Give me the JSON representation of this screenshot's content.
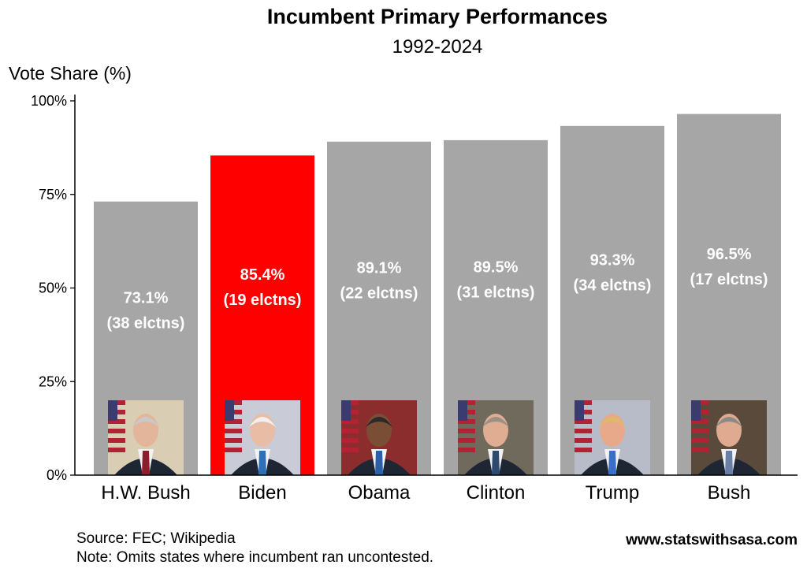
{
  "chart_data": {
    "type": "bar",
    "title": "Incumbent Primary Performances",
    "subtitle": "1992-2024",
    "ylabel": "Vote Share (%)",
    "ylim": [
      0,
      100
    ],
    "yticks": [
      0,
      25,
      50,
      75,
      100
    ],
    "ytick_labels": [
      "0%",
      "25%",
      "50%",
      "75%",
      "100%"
    ],
    "grid": false,
    "categories": [
      "H.W. Bush",
      "Biden",
      "Obama",
      "Clinton",
      "Trump",
      "Bush"
    ],
    "values": [
      73.1,
      85.4,
      89.1,
      89.5,
      93.3,
      96.5
    ],
    "value_labels": [
      "73.1%",
      "85.4%",
      "89.1%",
      "89.5%",
      "93.3%",
      "96.5%"
    ],
    "elections_labels": [
      "(38 elctns)",
      "(19 elctns)",
      "(22 elctns)",
      "(31 elctns)",
      "(34 elctns)",
      "(17 elctns)"
    ],
    "bar_colors": [
      "#a6a6a6",
      "#ff0000",
      "#a6a6a6",
      "#a6a6a6",
      "#a6a6a6",
      "#a6a6a6"
    ],
    "annotations": [
      "portrait photo at the base of each bar"
    ]
  },
  "footer": {
    "source": "Source: FEC; Wikipedia",
    "note": "Note: Omits states where incumbent ran uncontested.",
    "brand": "www.statswithsasa.com"
  },
  "colors": {
    "bar_default": "#a6a6a6",
    "bar_highlight": "#ff0000",
    "label_text": "#ffffff",
    "portrait_suit": "#1f2633",
    "portrait_flag_red": "#b22234",
    "portrait_flag_blue": "#3c3b6e"
  }
}
